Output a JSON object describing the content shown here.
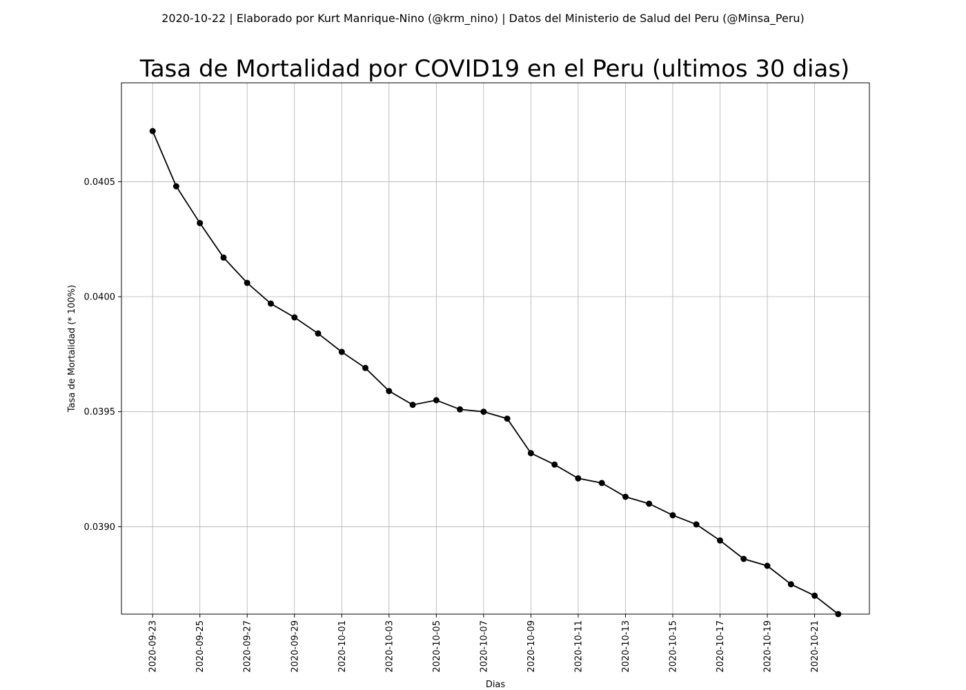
{
  "header": {
    "supertitle": "2020-10-22 | Elaborado por Kurt Manrique-Nino (@krm_nino) | Datos del Ministerio de Salud del Peru (@Minsa_Peru)"
  },
  "chart_data": {
    "type": "line",
    "title": "Tasa de Mortalidad por COVID19 en el Peru (ultimos 30 dias)",
    "xlabel": "Dias",
    "ylabel": "Tasa de Mortalidad (* 100%)",
    "grid": true,
    "legend": "none",
    "line_color": "#000000",
    "marker": "circle",
    "ylim": [
      0.03862,
      0.04093
    ],
    "y_ticks": [
      "0.0390",
      "0.0395",
      "0.0400",
      "0.0405"
    ],
    "x_ticks": [
      "2020-09-23",
      "2020-09-25",
      "2020-09-27",
      "2020-09-29",
      "2020-10-01",
      "2020-10-03",
      "2020-10-05",
      "2020-10-07",
      "2020-10-09",
      "2020-10-11",
      "2020-10-13",
      "2020-10-15",
      "2020-10-17",
      "2020-10-19",
      "2020-10-21"
    ],
    "x": [
      "2020-09-23",
      "2020-09-24",
      "2020-09-25",
      "2020-09-26",
      "2020-09-27",
      "2020-09-28",
      "2020-09-29",
      "2020-09-30",
      "2020-10-01",
      "2020-10-02",
      "2020-10-03",
      "2020-10-04",
      "2020-10-05",
      "2020-10-06",
      "2020-10-07",
      "2020-10-08",
      "2020-10-09",
      "2020-10-10",
      "2020-10-11",
      "2020-10-12",
      "2020-10-13",
      "2020-10-14",
      "2020-10-15",
      "2020-10-16",
      "2020-10-17",
      "2020-10-18",
      "2020-10-19",
      "2020-10-20",
      "2020-10-21",
      "2020-10-22"
    ],
    "values": [
      0.04072,
      0.04048,
      0.04032,
      0.04017,
      0.04006,
      0.03997,
      0.03991,
      0.03984,
      0.03976,
      0.03969,
      0.03959,
      0.03953,
      0.03955,
      0.03951,
      0.0395,
      0.03947,
      0.03932,
      0.03927,
      0.03921,
      0.03919,
      0.03913,
      0.0391,
      0.03905,
      0.03901,
      0.03894,
      0.03886,
      0.03883,
      0.03875,
      0.0387,
      0.03862
    ]
  }
}
